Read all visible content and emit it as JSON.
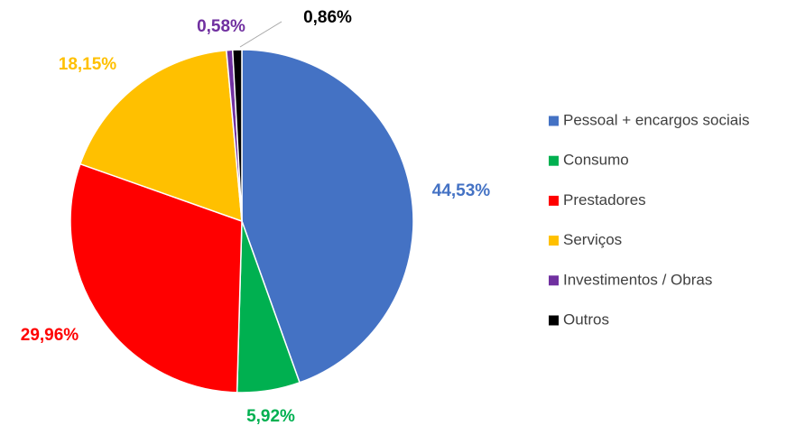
{
  "chart_data": {
    "type": "pie",
    "categories": [
      "Pessoal + encargos sociais",
      "Consumo",
      "Prestadores",
      "Serviços",
      "Investimentos / Obras",
      "Outros"
    ],
    "values": [
      44.53,
      5.92,
      29.96,
      18.15,
      0.58,
      0.86
    ],
    "value_labels": [
      "44,53%",
      "5,92%",
      "29,96%",
      "18,15%",
      "0,58%",
      "0,86%"
    ],
    "colors": [
      "#4472c4",
      "#00b050",
      "#ff0000",
      "#ffc000",
      "#7030a0",
      "#000000"
    ],
    "legend": "right"
  }
}
